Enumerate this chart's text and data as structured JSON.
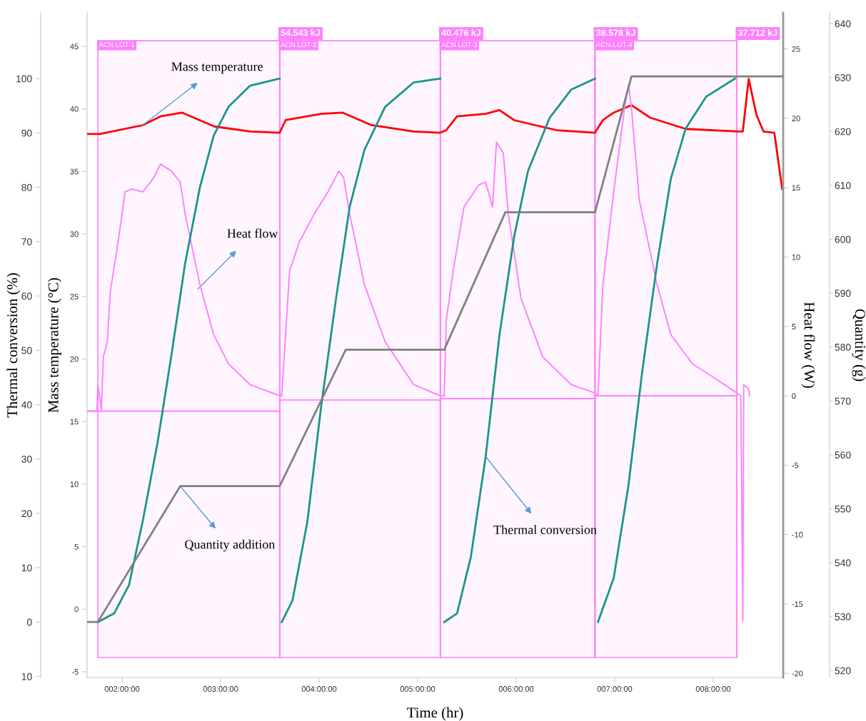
{
  "chart_data": [
    {
      "type": "line",
      "xlabel": "Time (hr)",
      "ylabel": "Mass temperature (°C)",
      "y2label": "Heat flow (W)",
      "y3label": "Thermal conversion (%)",
      "xlim": [
        1.645,
        8.71
      ],
      "xticks": [
        {
          "value": 2,
          "label": "002:00:00"
        },
        {
          "value": 3,
          "label": "003:00:00"
        },
        {
          "value": 4,
          "label": "004:00:00"
        },
        {
          "value": 5,
          "label": "005:00:00"
        },
        {
          "value": 6,
          "label": "006:00:00"
        },
        {
          "value": 7,
          "label": "007:00:00"
        },
        {
          "value": 8,
          "label": "008:00:00"
        }
      ],
      "ylim": [
        -5.46,
        47.68
      ],
      "yticks": [
        -5,
        0,
        5,
        10,
        15,
        20,
        25,
        30,
        35,
        40,
        45
      ],
      "y2lim": [
        -20.3,
        27.6
      ],
      "y2ticks": [
        -20,
        -15,
        -10,
        -5,
        0,
        5,
        10,
        15,
        20,
        25
      ],
      "y3lim": [
        -10.2,
        112.1
      ],
      "y3ticks": [
        {
          "value": -10,
          "label": "10"
        },
        0,
        10,
        20,
        30,
        40,
        50,
        60,
        70,
        80,
        90,
        100
      ],
      "grid": false,
      "marker": "none",
      "line_style": "solid",
      "series": [
        {
          "color": "#ff0000",
          "axis": "y",
          "x": [
            1.645,
            1.775,
            2.21,
            2.39,
            2.61,
            2.935,
            3.3,
            3.6,
            3.66,
            4.02,
            4.24,
            4.53,
            4.96,
            5.23,
            5.29,
            5.4,
            5.69,
            5.83,
            5.98,
            6.41,
            6.8,
            6.88,
            6.99,
            7.17,
            7.36,
            7.72,
            8.24,
            8.3,
            8.36,
            8.44,
            8.51,
            8.62,
            8.7
          ],
          "values": [
            38.0,
            38.0,
            38.7,
            39.4,
            39.7,
            38.6,
            38.2,
            38.1,
            39.1,
            39.6,
            39.7,
            38.7,
            38.2,
            38.1,
            38.3,
            39.4,
            39.6,
            39.9,
            39.1,
            38.3,
            38.1,
            39.1,
            39.7,
            40.3,
            39.3,
            38.4,
            38.2,
            38.2,
            42.4,
            39.5,
            38.2,
            38.1,
            33.6
          ]
        },
        {
          "color": "#ff80ff",
          "axis": "y2",
          "x": [
            1.645,
            1.746,
            1.754,
            1.79,
            1.81,
            1.85,
            1.88,
            1.96,
            2.03,
            2.1,
            2.21,
            2.32,
            2.39,
            2.5,
            2.59,
            2.64,
            2.79,
            2.93,
            3.08,
            3.3,
            3.6,
            3.62,
            3.66,
            3.7,
            3.8,
            3.95,
            4.09,
            4.2,
            4.25,
            4.31,
            4.46,
            4.67,
            4.96,
            5.23,
            5.27,
            5.29,
            5.36,
            5.47,
            5.62,
            5.69,
            5.76,
            5.8,
            5.87,
            5.92,
            6.05,
            6.27,
            6.56,
            6.8,
            6.83,
            6.88,
            6.99,
            7.1,
            7.14,
            7.17,
            7.25,
            7.43,
            7.57,
            7.79,
            8.01,
            8.22,
            8.28,
            8.3,
            8.31,
            8.36,
            8.37
          ],
          "values": [
            -1.1,
            -1.1,
            0.8,
            -1.0,
            2.8,
            3.9,
            7.5,
            11.1,
            14.7,
            14.9,
            14.7,
            15.7,
            16.7,
            16.2,
            15.4,
            13.1,
            8.0,
            4.4,
            2.3,
            0.8,
            0,
            0,
            4.4,
            9.0,
            11.1,
            13.1,
            14.7,
            16.2,
            15.7,
            13.1,
            8.0,
            3.9,
            0.8,
            0,
            0,
            5.4,
            9.0,
            13.6,
            15.2,
            15.4,
            13.6,
            18.3,
            17.5,
            13.1,
            7.0,
            2.8,
            0.8,
            0.2,
            0,
            8.0,
            14.7,
            20.8,
            22.4,
            20.8,
            14.1,
            8.0,
            4.4,
            2.3,
            1.3,
            0.3,
            0,
            -16.2,
            0.8,
            0.5,
            0
          ]
        },
        {
          "color": "#ff80ff",
          "axis": "y2",
          "x": [
            1.645,
            3.6,
            3.605,
            3.61,
            5.23,
            5.235,
            5.24,
            6.8,
            6.805,
            6.81,
            8.24
          ],
          "values": [
            -1.1,
            -1.1,
            null,
            -0.3,
            -0.3,
            null,
            -0.2,
            -0.2,
            null,
            0,
            0
          ]
        },
        {
          "color": "#1a9688",
          "axis": "y3",
          "x": [
            1.754,
            1.92,
            2.07,
            2.21,
            2.36,
            2.5,
            2.64,
            2.79,
            2.93,
            3.08,
            3.3,
            3.6,
            3.61,
            3.62,
            3.73,
            3.88,
            4.02,
            4.17,
            4.31,
            4.46,
            4.67,
            4.96,
            5.23,
            5.25,
            5.27,
            5.4,
            5.54,
            5.69,
            5.83,
            5.98,
            6.12,
            6.34,
            6.56,
            6.8,
            6.81,
            6.83,
            6.99,
            7.14,
            7.28,
            7.43,
            7.57,
            7.72,
            7.93,
            8.22
          ],
          "values": [
            0,
            1.6,
            6.8,
            18.6,
            33,
            49,
            66,
            80,
            89.5,
            94.8,
            98.7,
            100,
            null,
            0,
            4,
            18.4,
            39.6,
            59.3,
            76.4,
            86.9,
            94.8,
            99.3,
            100,
            null,
            0,
            1.6,
            12,
            30.4,
            52.8,
            71,
            83,
            92.8,
            98,
            100,
            null,
            0,
            8.1,
            25.2,
            46.2,
            65.9,
            81.6,
            90.8,
            96.7,
            100
          ]
        }
      ],
      "bands": [
        {
          "axis": "x",
          "from": 1.754,
          "to": 3.6,
          "label": "ACN LOT-1",
          "color": "#ff80ff"
        },
        {
          "axis": "x",
          "from": 3.6,
          "to": 5.23,
          "label": "ACN LOT-2",
          "color": "#ff80ff"
        },
        {
          "axis": "x",
          "from": 5.23,
          "to": 6.8,
          "label": "ACN LOT-3",
          "color": "#ff80ff"
        },
        {
          "axis": "x",
          "from": 6.8,
          "to": 8.24,
          "label": "ACN-LOT-4",
          "color": "#ff80ff"
        }
      ],
      "ref_lines": [
        {
          "axis": "x",
          "value": 3.6,
          "label": "54.543 kJ",
          "color": "#ff80ff"
        },
        {
          "axis": "x",
          "value": 5.23,
          "label": "40.476 kJ",
          "color": "#ff80ff"
        },
        {
          "axis": "x",
          "value": 6.8,
          "label": "38.578 kJ",
          "color": "#ff80ff"
        },
        {
          "axis": "x",
          "value": 8.24,
          "label": "37.712 kJ",
          "color": "#ff80ff"
        }
      ],
      "annotations": [
        {
          "text": "Mass temperature",
          "x": 2.21,
          "y": 38.7
        },
        {
          "text": "Heat flow",
          "x": 2.77,
          "y": 25.6
        },
        {
          "text": "Thermal conversion",
          "x": 5.69,
          "y": 12.2
        }
      ]
    },
    {
      "type": "line",
      "ylabel": "Quantity (g)",
      "xlim": [
        1.645,
        8.71
      ],
      "ylim": [
        518.7,
        642
      ],
      "yticks": [
        520,
        530,
        540,
        550,
        560,
        570,
        580,
        590,
        600,
        610,
        620,
        630,
        640
      ],
      "tick_labels": "y",
      "marker": "none",
      "line_style": "solid",
      "annotations": [
        {
          "text": "Quantity addition",
          "x": 2.59,
          "y": 554.2
        }
      ],
      "series": [
        {
          "color": "#808080",
          "x": [
            1.645,
            1.754,
            2.59,
            3.6,
            4.27,
            5.27,
            5.89,
            6.8,
            7.17,
            8.7
          ],
          "values": [
            529,
            529,
            554.2,
            554.2,
            579.5,
            579.5,
            605,
            605,
            630.2,
            630.2
          ]
        }
      ]
    }
  ]
}
